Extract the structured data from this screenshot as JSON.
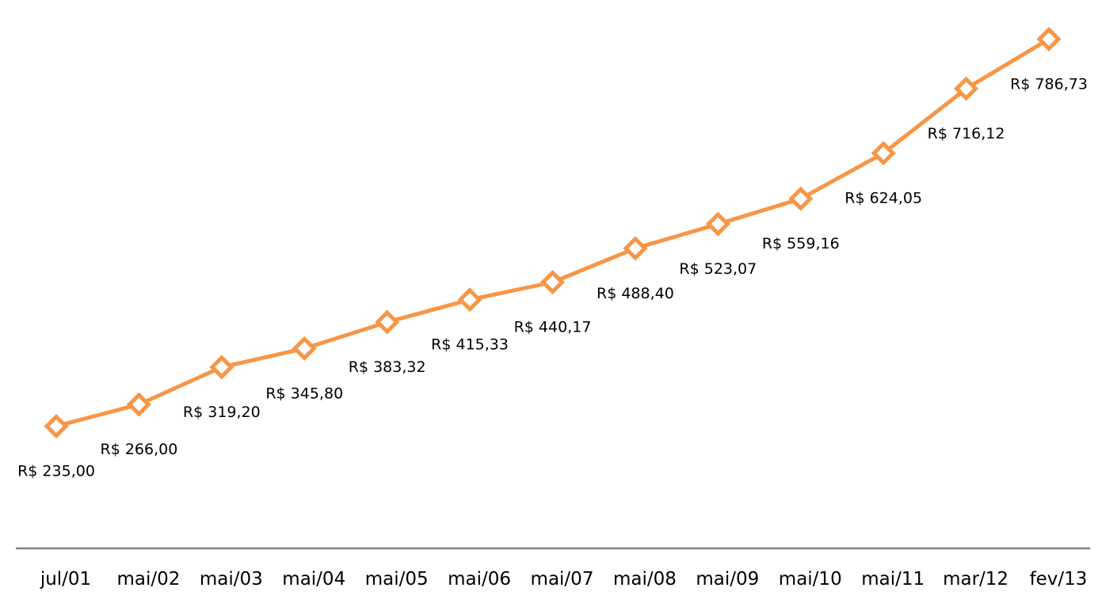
{
  "chart_data": {
    "type": "line",
    "title": "",
    "xlabel": "",
    "ylabel": "",
    "categories": [
      "jul/01",
      "mai/02",
      "mai/03",
      "mai/04",
      "mai/05",
      "mai/06",
      "mai/07",
      "mai/08",
      "mai/09",
      "mai/10",
      "mai/11",
      "mar/12",
      "fev/13"
    ],
    "series": [
      {
        "values": [
          235.0,
          266.0,
          319.2,
          345.8,
          383.32,
          415.33,
          440.17,
          488.4,
          523.07,
          559.16,
          624.05,
          716.12,
          786.73
        ],
        "data_labels": [
          "R$ 235,00",
          "R$ 266,00",
          "R$ 319,20",
          "R$ 345,80",
          "R$ 383,32",
          "R$ 415,33",
          "R$ 440,17",
          "R$ 488,40",
          "R$ 523,07",
          "R$ 559,16",
          "R$ 624,05",
          "R$ 716,12",
          "R$ 786,73"
        ]
      }
    ],
    "ylim": [
      0,
      830
    ],
    "grid": false,
    "legend": "none",
    "marker": "diamond",
    "colors": {
      "line": "#F79646",
      "marker_fill": "#ffffff",
      "axis": "#808080",
      "text": "#000000"
    }
  }
}
